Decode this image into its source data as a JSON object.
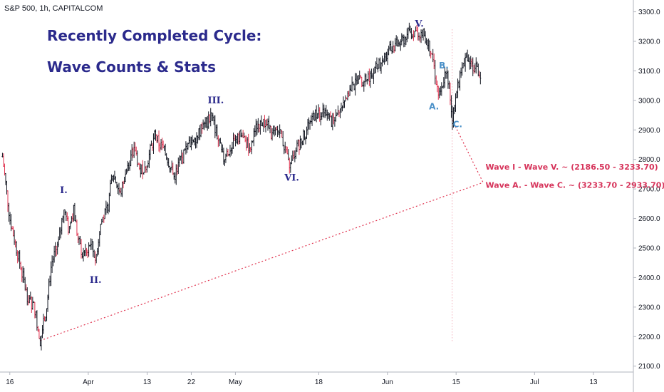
{
  "header": {
    "symbol": "S&P 500, 1h, CAPITALCOM",
    "title_line1": "Recently Completed Cycle:",
    "title_line2": "Wave Counts & Stats"
  },
  "chart_data": {
    "type": "candlestick",
    "title": "Recently Completed Cycle: Wave Counts & Stats",
    "y_axis": {
      "side": "right",
      "ylim": [
        2080,
        3340
      ],
      "ticks": [
        2100,
        2200,
        2300,
        2400,
        2500,
        2600,
        2700,
        2800,
        2900,
        3000,
        3100,
        3200,
        3300
      ],
      "tick_labels": [
        "2100.0",
        "2200.0",
        "2300.0",
        "2400.0",
        "2500.0",
        "2600.0",
        "2700.0",
        "2800.0",
        "2900.0",
        "3000.0",
        "3100.0",
        "3200.0",
        "3300.0"
      ]
    },
    "x_axis": {
      "ticks": [
        {
          "label": "16",
          "day": 0
        },
        {
          "label": "Apr",
          "day": 16
        },
        {
          "label": "13",
          "day": 28
        },
        {
          "label": "22",
          "day": 37
        },
        {
          "label": "May",
          "day": 46
        },
        {
          "label": "18",
          "day": 63
        },
        {
          "label": "Jun",
          "day": 77
        },
        {
          "label": "15",
          "day": 91
        },
        {
          "label": "Jul",
          "day": 107
        },
        {
          "label": "13",
          "day": 119
        }
      ],
      "xlim_days": [
        -2,
        127
      ]
    },
    "price_path": [
      {
        "day": -1.5,
        "v": 2810
      },
      {
        "day": 0,
        "v": 2600
      },
      {
        "day": 2,
        "v": 2450
      },
      {
        "day": 3.5,
        "v": 2340
      },
      {
        "day": 5,
        "v": 2300
      },
      {
        "day": 6.2,
        "v": 2186.5
      },
      {
        "day": 7.5,
        "v": 2300
      },
      {
        "day": 8.5,
        "v": 2450
      },
      {
        "day": 10,
        "v": 2520
      },
      {
        "day": 11,
        "v": 2640
      },
      {
        "day": 12,
        "v": 2560
      },
      {
        "day": 13,
        "v": 2630
      },
      {
        "day": 14,
        "v": 2520
      },
      {
        "day": 15,
        "v": 2470
      },
      {
        "day": 16.5,
        "v": 2520
      },
      {
        "day": 17.5,
        "v": 2460
      },
      {
        "day": 18.5,
        "v": 2580
      },
      {
        "day": 20,
        "v": 2640
      },
      {
        "day": 21,
        "v": 2760
      },
      {
        "day": 22.5,
        "v": 2680
      },
      {
        "day": 24,
        "v": 2780
      },
      {
        "day": 25.5,
        "v": 2840
      },
      {
        "day": 26.5,
        "v": 2760
      },
      {
        "day": 28,
        "v": 2790
      },
      {
        "day": 29.5,
        "v": 2880
      },
      {
        "day": 31,
        "v": 2840
      },
      {
        "day": 32,
        "v": 2810
      },
      {
        "day": 33.5,
        "v": 2740
      },
      {
        "day": 35,
        "v": 2800
      },
      {
        "day": 36.5,
        "v": 2850
      },
      {
        "day": 38,
        "v": 2880
      },
      {
        "day": 40,
        "v": 2920
      },
      {
        "day": 41,
        "v": 2950
      },
      {
        "day": 42,
        "v": 2900
      },
      {
        "day": 43.5,
        "v": 2800
      },
      {
        "day": 45,
        "v": 2840
      },
      {
        "day": 47,
        "v": 2880
      },
      {
        "day": 49,
        "v": 2840
      },
      {
        "day": 50.5,
        "v": 2920
      },
      {
        "day": 52,
        "v": 2930
      },
      {
        "day": 53.5,
        "v": 2880
      },
      {
        "day": 55,
        "v": 2900
      },
      {
        "day": 56,
        "v": 2840
      },
      {
        "day": 57,
        "v": 2770
      },
      {
        "day": 58.5,
        "v": 2840
      },
      {
        "day": 60,
        "v": 2880
      },
      {
        "day": 62,
        "v": 2950
      },
      {
        "day": 64,
        "v": 2960
      },
      {
        "day": 66,
        "v": 2920
      },
      {
        "day": 68,
        "v": 3000
      },
      {
        "day": 70,
        "v": 3050
      },
      {
        "day": 72,
        "v": 3070
      },
      {
        "day": 74,
        "v": 3090
      },
      {
        "day": 76,
        "v": 3140
      },
      {
        "day": 78,
        "v": 3180
      },
      {
        "day": 80,
        "v": 3200
      },
      {
        "day": 81.5,
        "v": 3230
      },
      {
        "day": 83,
        "v": 3233.7
      },
      {
        "day": 84.5,
        "v": 3220
      },
      {
        "day": 86,
        "v": 3170
      },
      {
        "day": 86.8,
        "v": 3080
      },
      {
        "day": 87.5,
        "v": 3010
      },
      {
        "day": 88.3,
        "v": 3060
      },
      {
        "day": 89,
        "v": 3110
      },
      {
        "day": 89.6,
        "v": 3050
      },
      {
        "day": 90.2,
        "v": 2933.7
      },
      {
        "day": 91,
        "v": 3020
      },
      {
        "day": 92,
        "v": 3100
      },
      {
        "day": 93,
        "v": 3150
      },
      {
        "day": 94,
        "v": 3120
      },
      {
        "day": 95,
        "v": 3110
      },
      {
        "day": 96,
        "v": 3090
      }
    ],
    "wave_labels": [
      {
        "text": "I.",
        "day": 11,
        "v": 2686,
        "kind": "wave"
      },
      {
        "text": "II.",
        "day": 17.5,
        "v": 2382,
        "kind": "wave"
      },
      {
        "text": "III.",
        "day": 42,
        "v": 2990,
        "kind": "wave"
      },
      {
        "text": "VI.",
        "day": 57.5,
        "v": 2728,
        "kind": "wave"
      },
      {
        "text": "V.",
        "day": 83.5,
        "v": 3250,
        "kind": "wave"
      },
      {
        "text": "A.",
        "day": 86.5,
        "v": 2970,
        "kind": "abc"
      },
      {
        "text": "B.",
        "day": 88.5,
        "v": 3108,
        "kind": "abc"
      },
      {
        "text": "C.",
        "day": 91.3,
        "v": 2909,
        "kind": "abc"
      }
    ],
    "annotations": [
      {
        "text": "Wave I - Wave V. ~ (2186.50 - 3233.70)",
        "day": 97,
        "v": 2766
      },
      {
        "text": "Wave A. - Wave C. ~ (3233.70 - 2933.70)",
        "day": 97,
        "v": 2704
      }
    ],
    "guides": {
      "diagonal_from": {
        "day": 6.2,
        "v": 2186.5
      },
      "diagonal_to": {
        "day": 96.5,
        "v": 2722
      },
      "descent_from": {
        "day": 90.2,
        "v": 2933.7
      },
      "descent_to": {
        "day": 96.5,
        "v": 2722
      },
      "vertical_day": 90.2,
      "vertical_v_range": [
        2180,
        3240
      ]
    },
    "colors": {
      "candle": "#131722",
      "candle_down": "#e0334f",
      "guide": "#e0334f",
      "wave_label": "#2b2a8c",
      "abc_label": "#4a90c8",
      "annotation": "#d6335a"
    }
  }
}
